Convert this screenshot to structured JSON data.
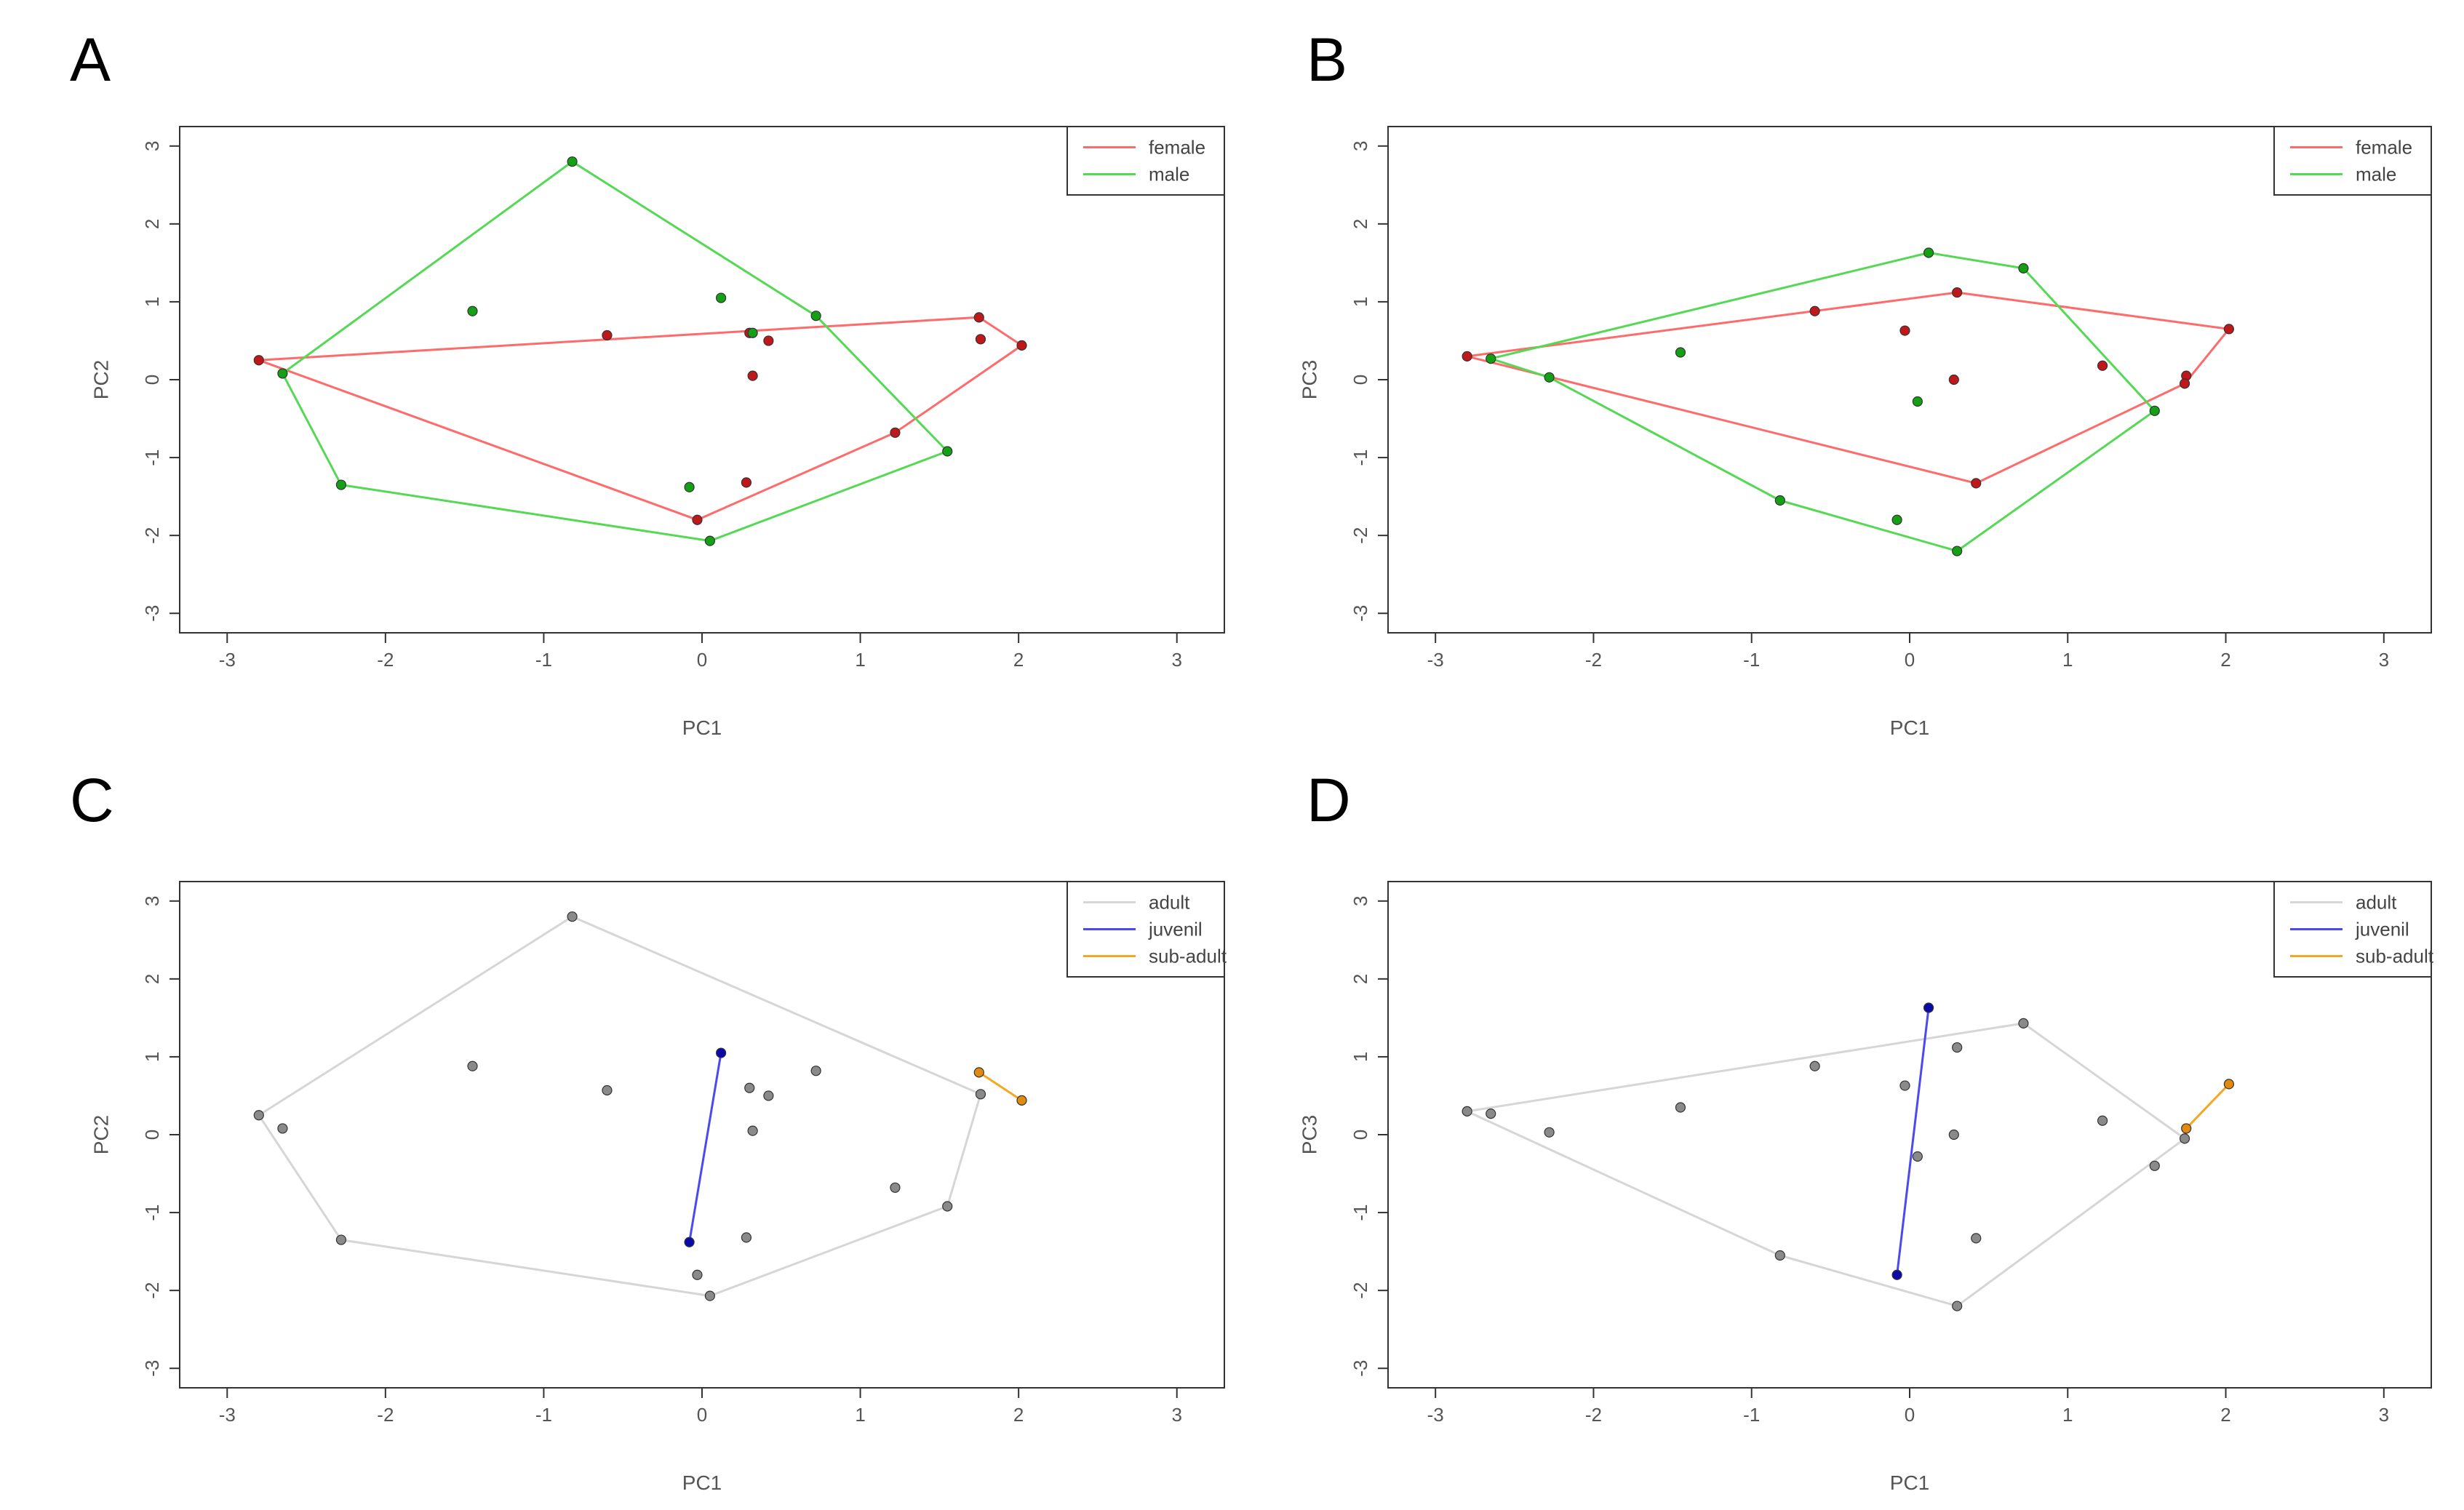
{
  "chart_data": [
    {
      "panel_label": "A",
      "type": "scatter",
      "xlabel": "PC1",
      "ylabel": "PC2",
      "xlim": [
        -3.3,
        3.3
      ],
      "ylim": [
        -3.25,
        3.25
      ],
      "xticks": [
        "-3",
        "-2",
        "-1",
        "0",
        "1",
        "2",
        "3"
      ],
      "yticks": [
        "-3",
        "-2",
        "-1",
        "0",
        "1",
        "2",
        "3"
      ],
      "legend_position": "top-right",
      "series": [
        {
          "name": "female",
          "color": "#e14d4d",
          "point_color": "#c0181a",
          "hull_color": "#ff6b6b",
          "points": [
            [
              -2.8,
              0.25
            ],
            [
              -0.6,
              0.57
            ],
            [
              0.3,
              0.6
            ],
            [
              0.42,
              0.5
            ],
            [
              0.32,
              0.05
            ],
            [
              1.22,
              -0.68
            ],
            [
              0.28,
              -1.32
            ],
            [
              -0.03,
              -1.8
            ],
            [
              1.75,
              0.8
            ],
            [
              1.76,
              0.52
            ],
            [
              2.02,
              0.44
            ]
          ],
          "hull": [
            [
              -2.8,
              0.25
            ],
            [
              1.75,
              0.8
            ],
            [
              2.02,
              0.44
            ],
            [
              1.22,
              -0.68
            ],
            [
              -0.03,
              -1.8
            ],
            [
              -2.8,
              0.25
            ]
          ]
        },
        {
          "name": "male",
          "color": "#3cc43c",
          "point_color": "#14a014",
          "hull_color": "#55d955",
          "points": [
            [
              -0.82,
              2.8
            ],
            [
              -1.45,
              0.88
            ],
            [
              0.12,
              1.05
            ],
            [
              0.32,
              0.6
            ],
            [
              0.72,
              0.82
            ],
            [
              -2.65,
              0.08
            ],
            [
              -2.28,
              -1.35
            ],
            [
              -0.08,
              -1.38
            ],
            [
              0.05,
              -2.07
            ],
            [
              1.55,
              -0.92
            ]
          ],
          "hull": [
            [
              -0.82,
              2.8
            ],
            [
              0.72,
              0.82
            ],
            [
              1.55,
              -0.92
            ],
            [
              0.05,
              -2.07
            ],
            [
              -2.28,
              -1.35
            ],
            [
              -2.65,
              0.08
            ],
            [
              -0.82,
              2.8
            ]
          ]
        }
      ]
    },
    {
      "panel_label": "B",
      "type": "scatter",
      "xlabel": "PC1",
      "ylabel": "PC3",
      "xlim": [
        -3.3,
        3.3
      ],
      "ylim": [
        -3.25,
        3.25
      ],
      "xticks": [
        "-3",
        "-2",
        "-1",
        "0",
        "1",
        "2",
        "3"
      ],
      "yticks": [
        "-3",
        "-2",
        "-1",
        "0",
        "1",
        "2",
        "3"
      ],
      "legend_position": "top-right",
      "series": [
        {
          "name": "female",
          "color": "#e14d4d",
          "point_color": "#c0181a",
          "hull_color": "#ff6b6b",
          "points": [
            [
              -2.8,
              0.3
            ],
            [
              -0.6,
              0.88
            ],
            [
              -0.03,
              0.63
            ],
            [
              0.3,
              1.12
            ],
            [
              0.28,
              0.0
            ],
            [
              1.22,
              0.18
            ],
            [
              0.42,
              -1.33
            ],
            [
              1.75,
              0.05
            ],
            [
              1.74,
              -0.05
            ],
            [
              2.02,
              0.65
            ]
          ],
          "hull": [
            [
              -2.8,
              0.3
            ],
            [
              0.3,
              1.12
            ],
            [
              2.02,
              0.65
            ],
            [
              1.74,
              -0.05
            ],
            [
              0.42,
              -1.33
            ],
            [
              -2.8,
              0.3
            ]
          ]
        },
        {
          "name": "male",
          "color": "#3cc43c",
          "point_color": "#14a014",
          "hull_color": "#55d955",
          "points": [
            [
              0.12,
              1.63
            ],
            [
              0.72,
              1.43
            ],
            [
              -2.65,
              0.27
            ],
            [
              -2.28,
              0.03
            ],
            [
              -1.45,
              0.35
            ],
            [
              0.05,
              -0.28
            ],
            [
              1.55,
              -0.4
            ],
            [
              -0.82,
              -1.55
            ],
            [
              -0.08,
              -1.8
            ],
            [
              0.3,
              -2.2
            ]
          ],
          "hull": [
            [
              -2.65,
              0.27
            ],
            [
              0.12,
              1.63
            ],
            [
              0.72,
              1.43
            ],
            [
              1.55,
              -0.4
            ],
            [
              0.3,
              -2.2
            ],
            [
              -0.82,
              -1.55
            ],
            [
              -2.28,
              0.03
            ],
            [
              -2.65,
              0.27
            ]
          ]
        }
      ]
    },
    {
      "panel_label": "C",
      "type": "scatter",
      "xlabel": "PC1",
      "ylabel": "PC2",
      "xlim": [
        -3.3,
        3.3
      ],
      "ylim": [
        -3.25,
        3.25
      ],
      "xticks": [
        "-3",
        "-2",
        "-1",
        "0",
        "1",
        "2",
        "3"
      ],
      "yticks": [
        "-3",
        "-2",
        "-1",
        "0",
        "1",
        "2",
        "3"
      ],
      "legend_position": "top-right",
      "series": [
        {
          "name": "adult",
          "color": "#d4d4d4",
          "point_color": "#8a8a8a",
          "hull_color": "#d6d6d6",
          "points": [
            [
              -0.82,
              2.8
            ],
            [
              -1.45,
              0.88
            ],
            [
              -0.6,
              0.57
            ],
            [
              0.3,
              0.6
            ],
            [
              0.42,
              0.5
            ],
            [
              0.72,
              0.82
            ],
            [
              0.32,
              0.05
            ],
            [
              -2.8,
              0.25
            ],
            [
              -2.65,
              0.08
            ],
            [
              -2.28,
              -1.35
            ],
            [
              1.22,
              -0.68
            ],
            [
              1.55,
              -0.92
            ],
            [
              0.28,
              -1.32
            ],
            [
              -0.03,
              -1.8
            ],
            [
              0.05,
              -2.07
            ],
            [
              1.76,
              0.52
            ]
          ],
          "hull": [
            [
              -0.82,
              2.8
            ],
            [
              1.76,
              0.52
            ],
            [
              1.55,
              -0.92
            ],
            [
              0.05,
              -2.07
            ],
            [
              -2.28,
              -1.35
            ],
            [
              -2.8,
              0.25
            ],
            [
              -0.82,
              2.8
            ]
          ]
        },
        {
          "name": "juvenil",
          "color": "#3a3ae0",
          "point_color": "#0a0aa8",
          "hull_color": "#4a4af0",
          "points": [
            [
              0.12,
              1.05
            ],
            [
              -0.08,
              -1.38
            ]
          ],
          "hull": [
            [
              0.12,
              1.05
            ],
            [
              -0.08,
              -1.38
            ]
          ]
        },
        {
          "name": "sub-adult",
          "color": "#f0a020",
          "point_color": "#e08a10",
          "hull_color": "#f5a623",
          "points": [
            [
              1.75,
              0.8
            ],
            [
              2.02,
              0.44
            ]
          ],
          "hull": [
            [
              1.75,
              0.8
            ],
            [
              2.02,
              0.44
            ]
          ]
        }
      ]
    },
    {
      "panel_label": "D",
      "type": "scatter",
      "xlabel": "PC1",
      "ylabel": "PC3",
      "xlim": [
        -3.3,
        3.3
      ],
      "ylim": [
        -3.25,
        3.25
      ],
      "xticks": [
        "-3",
        "-2",
        "-1",
        "0",
        "1",
        "2",
        "3"
      ],
      "yticks": [
        "-3",
        "-2",
        "-1",
        "0",
        "1",
        "2",
        "3"
      ],
      "legend_position": "top-right",
      "series": [
        {
          "name": "adult",
          "color": "#d4d4d4",
          "point_color": "#8a8a8a",
          "hull_color": "#d6d6d6",
          "points": [
            [
              -2.8,
              0.3
            ],
            [
              -2.65,
              0.27
            ],
            [
              -2.28,
              0.03
            ],
            [
              -1.45,
              0.35
            ],
            [
              -0.6,
              0.88
            ],
            [
              -0.03,
              0.63
            ],
            [
              0.3,
              1.12
            ],
            [
              0.72,
              1.43
            ],
            [
              0.05,
              -0.28
            ],
            [
              0.28,
              0.0
            ],
            [
              1.22,
              0.18
            ],
            [
              1.55,
              -0.4
            ],
            [
              1.74,
              -0.05
            ],
            [
              0.42,
              -1.33
            ],
            [
              -0.82,
              -1.55
            ],
            [
              0.3,
              -2.2
            ]
          ],
          "hull": [
            [
              -2.8,
              0.3
            ],
            [
              0.72,
              1.43
            ],
            [
              1.74,
              -0.05
            ],
            [
              0.3,
              -2.2
            ],
            [
              -0.82,
              -1.55
            ],
            [
              -2.8,
              0.3
            ]
          ]
        },
        {
          "name": "juvenil",
          "color": "#3a3ae0",
          "point_color": "#0a0aa8",
          "hull_color": "#4a4af0",
          "points": [
            [
              0.12,
              1.63
            ],
            [
              -0.08,
              -1.8
            ]
          ],
          "hull": [
            [
              0.12,
              1.63
            ],
            [
              -0.08,
              -1.8
            ]
          ]
        },
        {
          "name": "sub-adult",
          "color": "#f0a020",
          "point_color": "#e08a10",
          "hull_color": "#f5a623",
          "points": [
            [
              1.75,
              0.08
            ],
            [
              2.02,
              0.65
            ]
          ],
          "hull": [
            [
              1.75,
              0.08
            ],
            [
              2.02,
              0.65
            ]
          ]
        }
      ]
    }
  ]
}
